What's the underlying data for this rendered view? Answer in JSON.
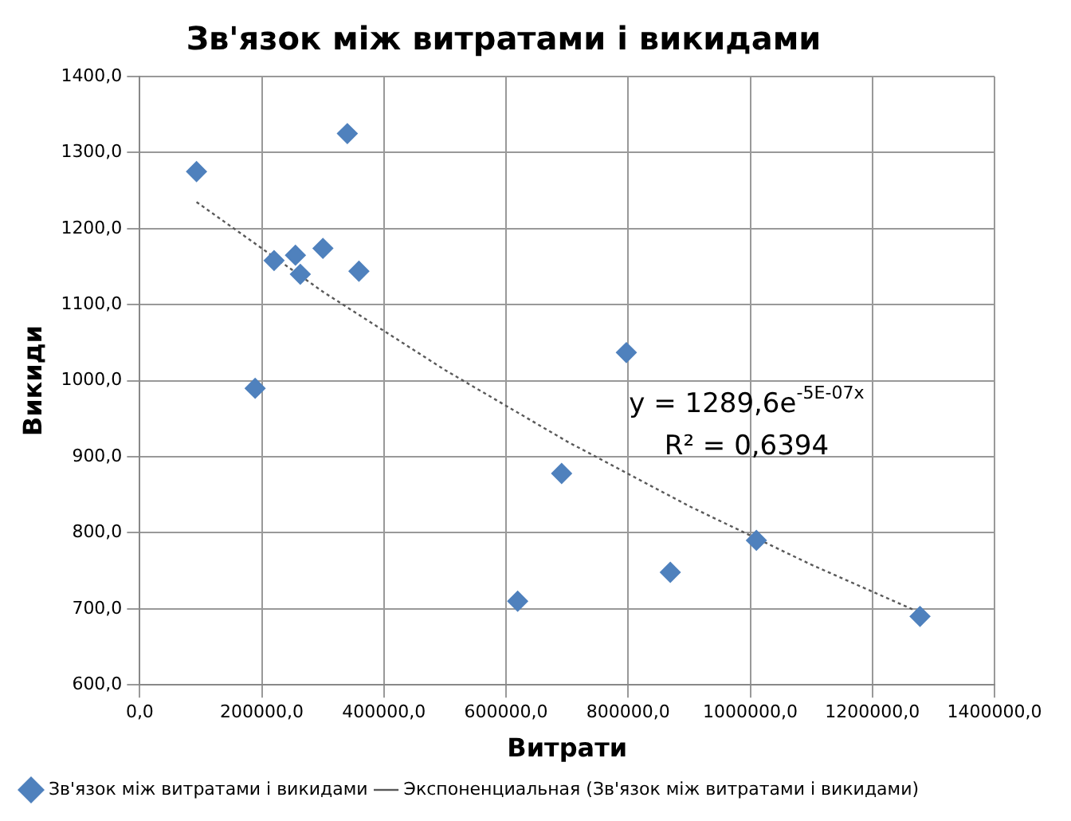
{
  "chart_data": {
    "type": "scatter",
    "title": "Зв'язок між витратами і викидами",
    "xlabel": "Витрати",
    "ylabel": "Викиди",
    "x": [
      93000,
      189000,
      220000,
      255000,
      263000,
      300000,
      340000,
      359000,
      619000,
      691000,
      797000,
      869000,
      1010000,
      1278000
    ],
    "series": [
      {
        "name": "Зв'язок між витратами і викидами",
        "color": "#4f81bd",
        "marker": "diamond",
        "values": [
          1275,
          990,
          1158,
          1165,
          1140,
          1174,
          1325,
          1144,
          710,
          878,
          1037,
          748,
          790,
          690
        ]
      },
      {
        "name": "Экспоненциальная (Зв'язок між витратами і викидами)",
        "type": "line",
        "color": "#595959",
        "line_style": "dotted",
        "marker": "none",
        "x": [
          93000,
          300000,
          500000,
          700000,
          900000,
          1100000,
          1278000
        ],
        "values": [
          1235,
          1117,
          1014,
          920,
          835,
          758,
          695
        ]
      }
    ],
    "xlim": [
      0,
      1400000
    ],
    "xticks": [
      {
        "value": 0,
        "label": "0,0"
      },
      {
        "value": 200000,
        "label": "200000,0"
      },
      {
        "value": 400000,
        "label": "400000,0"
      },
      {
        "value": 600000,
        "label": "600000,0"
      },
      {
        "value": 800000,
        "label": "800000,0"
      },
      {
        "value": 1000000,
        "label": "1000000,0"
      },
      {
        "value": 1200000,
        "label": "1200000,0"
      },
      {
        "value": 1400000,
        "label": "1400000,0"
      }
    ],
    "ylim": [
      600,
      1400
    ],
    "yticks": [
      {
        "value": 600,
        "label": "600,0"
      },
      {
        "value": 700,
        "label": "700,0"
      },
      {
        "value": 800,
        "label": "800,0"
      },
      {
        "value": 900,
        "label": "900,0"
      },
      {
        "value": 1000,
        "label": "1000,0"
      },
      {
        "value": 1100,
        "label": "1100,0"
      },
      {
        "value": 1200,
        "label": "1200,0"
      },
      {
        "value": 1300,
        "label": "1300,0"
      },
      {
        "value": 1400,
        "label": "1400,0"
      }
    ],
    "annotations": [
      "y = 1289,6e$^{-5E-07x}$",
      "R² = 0,6394"
    ],
    "grid": true,
    "legend": "bottom"
  }
}
